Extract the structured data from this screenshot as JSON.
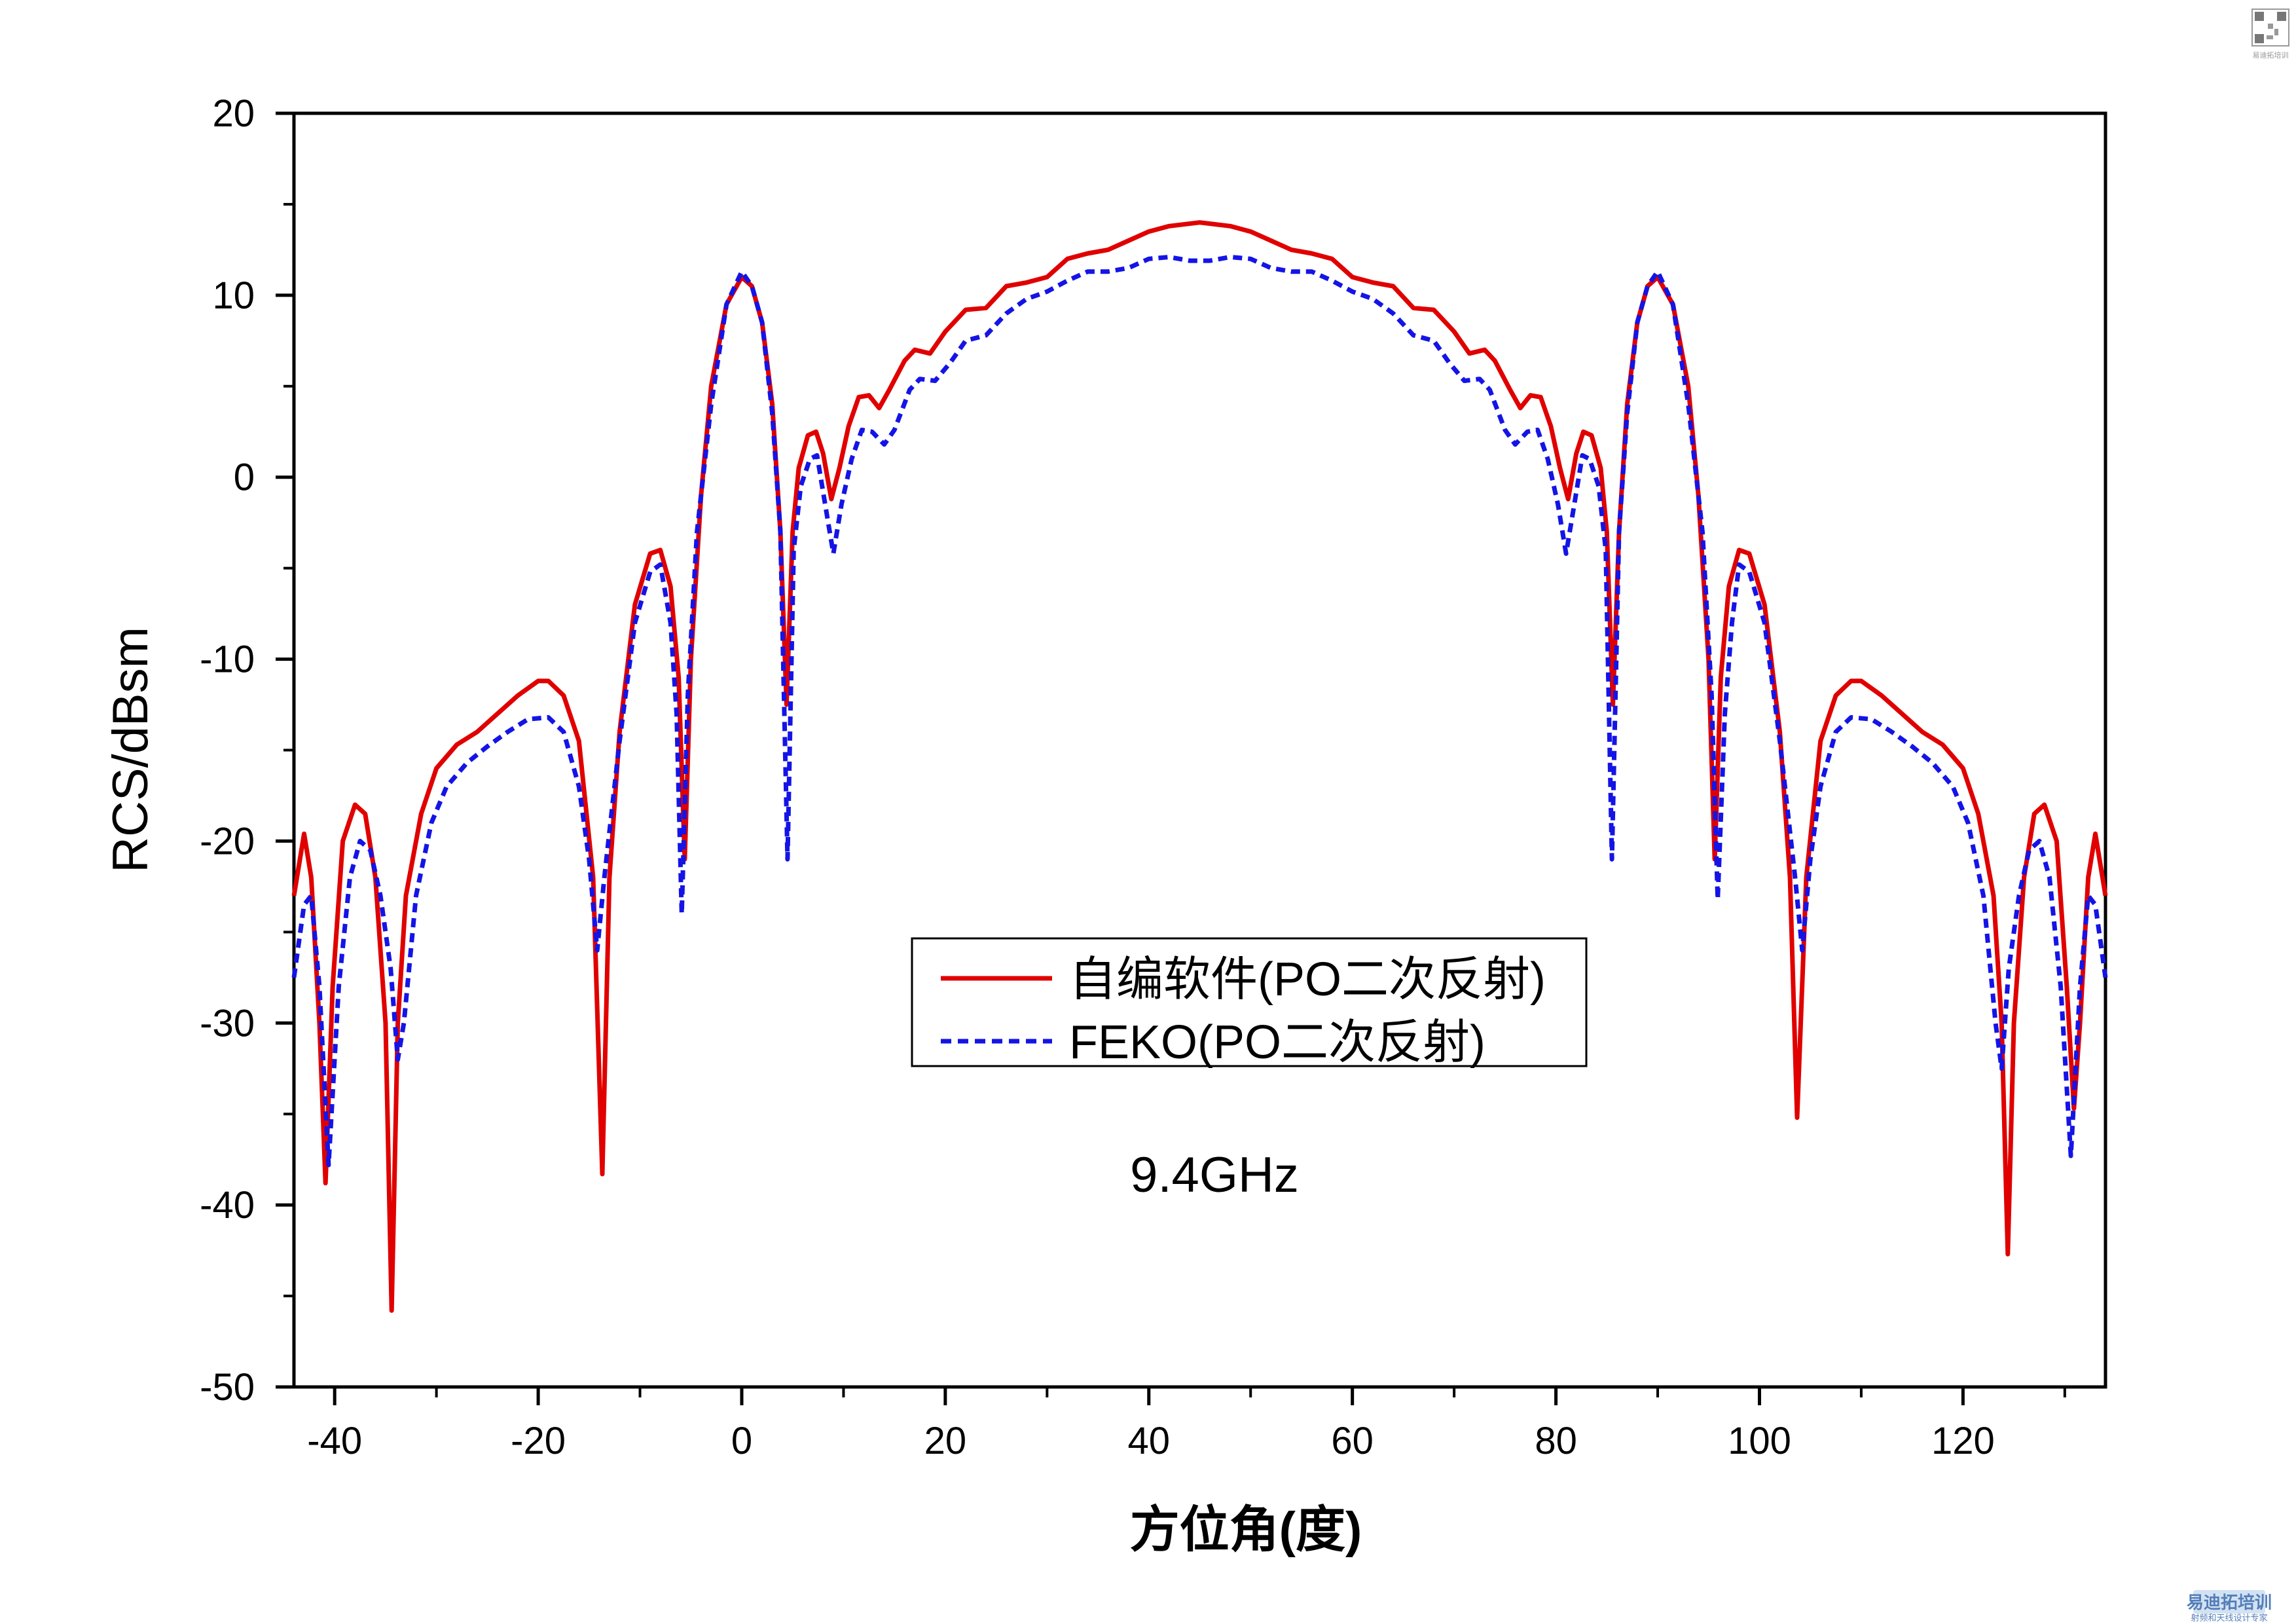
{
  "chart_data": {
    "type": "line",
    "title": "",
    "xlabel": "方位角(度)",
    "ylabel": "RCS/dBsm",
    "xlim": [
      -44,
      134
    ],
    "ylim": [
      -50,
      20
    ],
    "xticks": [
      -40,
      -20,
      0,
      20,
      40,
      60,
      80,
      100,
      120
    ],
    "yticks": [
      -50,
      -40,
      -30,
      -20,
      -10,
      0,
      10,
      20
    ],
    "grid": false,
    "legend_position": "center",
    "annotation": "9.4GHz",
    "series": [
      {
        "name": "自编软件(PO二次反射)",
        "color": "#e00000",
        "style": "solid",
        "points": [
          [
            -44,
            -23
          ],
          [
            -43,
            -19.6
          ],
          [
            -42.3,
            -22
          ],
          [
            -41.5,
            -30
          ],
          [
            -40.9,
            -38.8
          ],
          [
            -40.2,
            -28
          ],
          [
            -39.2,
            -20
          ],
          [
            -38,
            -18
          ],
          [
            -37,
            -18.5
          ],
          [
            -36,
            -22
          ],
          [
            -35,
            -30
          ],
          [
            -34.4,
            -45.8
          ],
          [
            -33.8,
            -30
          ],
          [
            -33,
            -23
          ],
          [
            -31.5,
            -18.5
          ],
          [
            -30,
            -16
          ],
          [
            -28,
            -14.7
          ],
          [
            -26,
            -14
          ],
          [
            -24,
            -13
          ],
          [
            -22,
            -12
          ],
          [
            -20,
            -11.2
          ],
          [
            -19,
            -11.2
          ],
          [
            -17.5,
            -12
          ],
          [
            -16,
            -14.5
          ],
          [
            -14.6,
            -22
          ],
          [
            -13.7,
            -38.3
          ],
          [
            -13,
            -22
          ],
          [
            -12,
            -14
          ],
          [
            -10.5,
            -7
          ],
          [
            -9,
            -4.2
          ],
          [
            -8,
            -4
          ],
          [
            -7,
            -6
          ],
          [
            -6.2,
            -11
          ],
          [
            -5.6,
            -21
          ],
          [
            -5,
            -10
          ],
          [
            -4,
            -1
          ],
          [
            -3,
            5
          ],
          [
            -1.5,
            9.5
          ],
          [
            0,
            11
          ],
          [
            1,
            10.5
          ],
          [
            2,
            8.5
          ],
          [
            3,
            4
          ],
          [
            3.8,
            -3
          ],
          [
            4.4,
            -12.5
          ],
          [
            5,
            -3
          ],
          [
            5.6,
            0.5
          ],
          [
            6.5,
            2.3
          ],
          [
            7.3,
            2.5
          ],
          [
            8,
            1.3
          ],
          [
            8.8,
            -1.2
          ],
          [
            9.6,
            0.5
          ],
          [
            10.5,
            2.8
          ],
          [
            11.5,
            4.4
          ],
          [
            12.5,
            4.5
          ],
          [
            13.5,
            3.8
          ],
          [
            14.5,
            4.8
          ],
          [
            16,
            6.4
          ],
          [
            17,
            7
          ],
          [
            18.5,
            6.8
          ],
          [
            20,
            8
          ],
          [
            22,
            9.2
          ],
          [
            24,
            9.3
          ],
          [
            26,
            10.5
          ],
          [
            28,
            10.7
          ],
          [
            30,
            11
          ],
          [
            32,
            12
          ],
          [
            34,
            12.3
          ],
          [
            36,
            12.5
          ],
          [
            38,
            13
          ],
          [
            40,
            13.5
          ],
          [
            42,
            13.8
          ],
          [
            45,
            14
          ],
          [
            48,
            13.8
          ],
          [
            50,
            13.5
          ],
          [
            52,
            13
          ],
          [
            54,
            12.5
          ],
          [
            56,
            12.3
          ],
          [
            58,
            12
          ],
          [
            60,
            11
          ],
          [
            62,
            10.7
          ],
          [
            64,
            10.5
          ],
          [
            66,
            9.3
          ],
          [
            68,
            9.2
          ],
          [
            70,
            8
          ],
          [
            71.5,
            6.8
          ],
          [
            73,
            7
          ],
          [
            74,
            6.4
          ],
          [
            75.5,
            4.8
          ],
          [
            76.5,
            3.8
          ],
          [
            77.5,
            4.5
          ],
          [
            78.5,
            4.4
          ],
          [
            79.5,
            2.8
          ],
          [
            80.4,
            0.5
          ],
          [
            81.2,
            -1.2
          ],
          [
            82,
            1.3
          ],
          [
            82.7,
            2.5
          ],
          [
            83.5,
            2.3
          ],
          [
            84.4,
            0.5
          ],
          [
            85,
            -3
          ],
          [
            85.6,
            -12.5
          ],
          [
            86.2,
            -3
          ],
          [
            87,
            4
          ],
          [
            88,
            8.5
          ],
          [
            89,
            10.5
          ],
          [
            90,
            11
          ],
          [
            91.5,
            9.5
          ],
          [
            93,
            5
          ],
          [
            94,
            -1
          ],
          [
            95,
            -10
          ],
          [
            95.6,
            -21
          ],
          [
            96.2,
            -11
          ],
          [
            97,
            -6
          ],
          [
            98,
            -4
          ],
          [
            99,
            -4.2
          ],
          [
            100.5,
            -7
          ],
          [
            102,
            -14
          ],
          [
            103,
            -22
          ],
          [
            103.7,
            -35.2
          ],
          [
            104.6,
            -22
          ],
          [
            106,
            -14.5
          ],
          [
            107.5,
            -12
          ],
          [
            109,
            -11.2
          ],
          [
            110,
            -11.2
          ],
          [
            112,
            -12
          ],
          [
            114,
            -13
          ],
          [
            116,
            -14
          ],
          [
            118,
            -14.7
          ],
          [
            120,
            -16
          ],
          [
            121.5,
            -18.5
          ],
          [
            123,
            -23
          ],
          [
            123.8,
            -30
          ],
          [
            124.4,
            -42.7
          ],
          [
            125,
            -30
          ],
          [
            126,
            -22
          ],
          [
            127,
            -18.5
          ],
          [
            128,
            -18
          ],
          [
            129.2,
            -20
          ],
          [
            130.2,
            -28
          ],
          [
            130.9,
            -34.7
          ],
          [
            131.5,
            -30
          ],
          [
            132.3,
            -22
          ],
          [
            133,
            -19.6
          ],
          [
            134,
            -23
          ]
        ]
      },
      {
        "name": "FEKO(PO二次反射)",
        "color": "#1414e6",
        "style": "dashed",
        "points": [
          [
            -44,
            -27.5
          ],
          [
            -43,
            -23.5
          ],
          [
            -42.3,
            -23
          ],
          [
            -41.5,
            -28
          ],
          [
            -40.6,
            -37.8
          ],
          [
            -39.6,
            -28
          ],
          [
            -38.5,
            -22
          ],
          [
            -37.5,
            -20
          ],
          [
            -36.5,
            -20.5
          ],
          [
            -35.5,
            -23
          ],
          [
            -34.5,
            -27
          ],
          [
            -33.8,
            -32
          ],
          [
            -33.2,
            -30
          ],
          [
            -32,
            -23
          ],
          [
            -30.5,
            -19
          ],
          [
            -29,
            -17
          ],
          [
            -27,
            -15.7
          ],
          [
            -25,
            -14.8
          ],
          [
            -23,
            -14
          ],
          [
            -21,
            -13.3
          ],
          [
            -19,
            -13.2
          ],
          [
            -17.5,
            -14
          ],
          [
            -16,
            -17
          ],
          [
            -15,
            -21
          ],
          [
            -14.2,
            -26
          ],
          [
            -13.5,
            -22
          ],
          [
            -12,
            -14.5
          ],
          [
            -10.5,
            -8
          ],
          [
            -9,
            -5.2
          ],
          [
            -8,
            -4.8
          ],
          [
            -7,
            -8
          ],
          [
            -6.4,
            -13
          ],
          [
            -5.9,
            -24
          ],
          [
            -5.3,
            -12
          ],
          [
            -4.4,
            -3
          ],
          [
            -3,
            4
          ],
          [
            -1.5,
            9.5
          ],
          [
            0,
            11.3
          ],
          [
            1,
            10.5
          ],
          [
            2,
            8.5
          ],
          [
            3,
            3.5
          ],
          [
            3.8,
            -3
          ],
          [
            4.5,
            -21
          ],
          [
            5.1,
            -4
          ],
          [
            5.8,
            -0.5
          ],
          [
            6.7,
            1
          ],
          [
            7.4,
            1.2
          ],
          [
            8.2,
            -1.5
          ],
          [
            9,
            -4.2
          ],
          [
            9.8,
            -1.5
          ],
          [
            10.8,
            1
          ],
          [
            11.8,
            2.6
          ],
          [
            12.8,
            2.5
          ],
          [
            14,
            1.8
          ],
          [
            15,
            2.6
          ],
          [
            16.5,
            4.8
          ],
          [
            17.5,
            5.4
          ],
          [
            19,
            5.3
          ],
          [
            20.5,
            6.3
          ],
          [
            22,
            7.5
          ],
          [
            24,
            7.8
          ],
          [
            26,
            9
          ],
          [
            28,
            9.8
          ],
          [
            30,
            10.2
          ],
          [
            32,
            10.8
          ],
          [
            34,
            11.3
          ],
          [
            36,
            11.3
          ],
          [
            38,
            11.5
          ],
          [
            40,
            12
          ],
          [
            42,
            12.1
          ],
          [
            44,
            11.9
          ],
          [
            46,
            11.9
          ],
          [
            48,
            12.1
          ],
          [
            50,
            12
          ],
          [
            52,
            11.5
          ],
          [
            54,
            11.3
          ],
          [
            56,
            11.3
          ],
          [
            58,
            10.8
          ],
          [
            60,
            10.2
          ],
          [
            62,
            9.8
          ],
          [
            64,
            9
          ],
          [
            66,
            7.8
          ],
          [
            68,
            7.5
          ],
          [
            69.5,
            6.3
          ],
          [
            71,
            5.3
          ],
          [
            72.5,
            5.4
          ],
          [
            73.5,
            4.8
          ],
          [
            75,
            2.6
          ],
          [
            76,
            1.8
          ],
          [
            77.2,
            2.5
          ],
          [
            78.2,
            2.6
          ],
          [
            79.2,
            1
          ],
          [
            80.2,
            -1.5
          ],
          [
            81,
            -4.2
          ],
          [
            81.8,
            -1.5
          ],
          [
            82.6,
            1.2
          ],
          [
            83.3,
            1
          ],
          [
            84.2,
            -0.5
          ],
          [
            84.9,
            -4
          ],
          [
            85.5,
            -21
          ],
          [
            86.2,
            -3
          ],
          [
            87,
            3.5
          ],
          [
            88,
            8.5
          ],
          [
            89,
            10.5
          ],
          [
            90,
            11.3
          ],
          [
            91.5,
            9.5
          ],
          [
            93,
            4
          ],
          [
            94.4,
            -3
          ],
          [
            95.3,
            -12
          ],
          [
            95.9,
            -23.2
          ],
          [
            96.6,
            -13
          ],
          [
            97.3,
            -8
          ],
          [
            98,
            -4.8
          ],
          [
            99,
            -5.2
          ],
          [
            100.5,
            -8
          ],
          [
            102,
            -14.5
          ],
          [
            103.5,
            -22
          ],
          [
            104.2,
            -26
          ],
          [
            105,
            -21
          ],
          [
            106,
            -17
          ],
          [
            107.5,
            -14
          ],
          [
            109,
            -13.2
          ],
          [
            111,
            -13.3
          ],
          [
            113,
            -14
          ],
          [
            115,
            -14.8
          ],
          [
            117,
            -15.7
          ],
          [
            119,
            -17
          ],
          [
            120.5,
            -19
          ],
          [
            122,
            -23
          ],
          [
            123.2,
            -30
          ],
          [
            123.8,
            -32.5
          ],
          [
            124.5,
            -27
          ],
          [
            125.5,
            -23
          ],
          [
            126.5,
            -20.5
          ],
          [
            127.5,
            -20
          ],
          [
            128.5,
            -22
          ],
          [
            129.6,
            -28
          ],
          [
            130.6,
            -37.3
          ],
          [
            131.5,
            -28
          ],
          [
            132.3,
            -23
          ],
          [
            133,
            -23.5
          ],
          [
            134,
            -27.5
          ]
        ]
      }
    ]
  },
  "watermarks": {
    "bottom_right_text": "易迪拓培训",
    "bottom_right_subtext": "射频和天线设计专家",
    "qr_caption": "易迪拓培训"
  }
}
